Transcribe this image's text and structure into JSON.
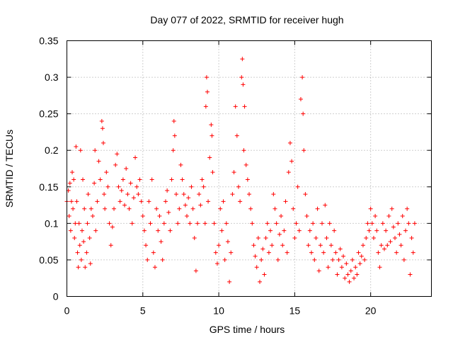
{
  "chart_data": {
    "type": "scatter",
    "title": "Day 077 of 2022, SRMTID for receiver hugh",
    "xlabel": "GPS time / hours",
    "ylabel": "SRMTID / TECUs",
    "xlim": [
      0,
      24
    ],
    "ylim": [
      0,
      0.35
    ],
    "xticks": [
      0,
      5,
      10,
      15,
      20
    ],
    "xtick_labels": [
      "0",
      "5",
      "10",
      "15",
      "20"
    ],
    "yticks": [
      0,
      0.05,
      0.1,
      0.15,
      0.2,
      0.25,
      0.3,
      0.35
    ],
    "ytick_labels": [
      "0",
      "0.05",
      "0.1",
      "0.15",
      "0.2",
      "0.25",
      "0.3",
      "0.35"
    ],
    "grid": true,
    "marker": "+",
    "color": "#ff0000",
    "series": [
      {
        "name": "SRMTID",
        "points": [
          [
            0.0,
            0.13
          ],
          [
            0.1,
            0.145
          ],
          [
            0.15,
            0.11
          ],
          [
            0.2,
            0.155
          ],
          [
            0.25,
            0.09
          ],
          [
            0.3,
            0.13
          ],
          [
            0.35,
            0.17
          ],
          [
            0.4,
            0.12
          ],
          [
            0.45,
            0.16
          ],
          [
            0.5,
            0.08
          ],
          [
            0.55,
            0.1
          ],
          [
            0.6,
            0.205
          ],
          [
            0.65,
            0.13
          ],
          [
            0.7,
            0.06
          ],
          [
            0.75,
            0.04
          ],
          [
            0.8,
            0.1
          ],
          [
            0.85,
            0.07
          ],
          [
            0.9,
            0.2
          ],
          [
            0.95,
            0.05
          ],
          [
            1.0,
            0.09
          ],
          [
            1.05,
            0.16
          ],
          [
            1.1,
            0.075
          ],
          [
            1.15,
            0.12
          ],
          [
            1.2,
            0.04
          ],
          [
            1.3,
            0.06
          ],
          [
            1.35,
            0.1
          ],
          [
            1.4,
            0.14
          ],
          [
            1.5,
            0.08
          ],
          [
            1.55,
            0.045
          ],
          [
            1.6,
            0.12
          ],
          [
            1.7,
            0.11
          ],
          [
            1.8,
            0.155
          ],
          [
            1.85,
            0.2
          ],
          [
            1.9,
            0.09
          ],
          [
            2.0,
            0.13
          ],
          [
            2.1,
            0.185
          ],
          [
            2.2,
            0.16
          ],
          [
            2.3,
            0.24
          ],
          [
            2.35,
            0.23
          ],
          [
            2.4,
            0.21
          ],
          [
            2.45,
            0.14
          ],
          [
            2.5,
            0.12
          ],
          [
            2.6,
            0.17
          ],
          [
            2.7,
            0.15
          ],
          [
            2.8,
            0.1
          ],
          [
            2.9,
            0.07
          ],
          [
            3.0,
            0.095
          ],
          [
            3.1,
            0.12
          ],
          [
            3.2,
            0.18
          ],
          [
            3.3,
            0.195
          ],
          [
            3.4,
            0.15
          ],
          [
            3.5,
            0.13
          ],
          [
            3.6,
            0.145
          ],
          [
            3.7,
            0.16
          ],
          [
            3.8,
            0.125
          ],
          [
            3.9,
            0.175
          ],
          [
            4.0,
            0.14
          ],
          [
            4.1,
            0.12
          ],
          [
            4.2,
            0.155
          ],
          [
            4.3,
            0.1
          ],
          [
            4.4,
            0.135
          ],
          [
            4.5,
            0.19
          ],
          [
            4.6,
            0.15
          ],
          [
            4.7,
            0.14
          ],
          [
            4.8,
            0.16
          ],
          [
            4.9,
            0.13
          ],
          [
            5.0,
            0.11
          ],
          [
            5.1,
            0.09
          ],
          [
            5.2,
            0.07
          ],
          [
            5.3,
            0.05
          ],
          [
            5.4,
            0.13
          ],
          [
            5.5,
            0.1
          ],
          [
            5.6,
            0.16
          ],
          [
            5.7,
            0.06
          ],
          [
            5.8,
            0.04
          ],
          [
            5.9,
            0.12
          ],
          [
            6.0,
            0.09
          ],
          [
            6.1,
            0.11
          ],
          [
            6.2,
            0.075
          ],
          [
            6.3,
            0.05
          ],
          [
            6.4,
            0.1
          ],
          [
            6.5,
            0.13
          ],
          [
            6.6,
            0.145
          ],
          [
            6.7,
            0.115
          ],
          [
            6.8,
            0.09
          ],
          [
            6.9,
            0.16
          ],
          [
            7.0,
            0.2
          ],
          [
            7.05,
            0.24
          ],
          [
            7.1,
            0.22
          ],
          [
            7.2,
            0.14
          ],
          [
            7.3,
            0.1
          ],
          [
            7.4,
            0.12
          ],
          [
            7.5,
            0.18
          ],
          [
            7.6,
            0.16
          ],
          [
            7.7,
            0.14
          ],
          [
            7.8,
            0.125
          ],
          [
            7.9,
            0.11
          ],
          [
            8.0,
            0.135
          ],
          [
            8.1,
            0.1
          ],
          [
            8.2,
            0.15
          ],
          [
            8.3,
            0.12
          ],
          [
            8.4,
            0.08
          ],
          [
            8.5,
            0.035
          ],
          [
            8.6,
            0.1
          ],
          [
            8.7,
            0.14
          ],
          [
            8.8,
            0.125
          ],
          [
            8.9,
            0.16
          ],
          [
            9.0,
            0.15
          ],
          [
            9.1,
            0.1
          ],
          [
            9.15,
            0.26
          ],
          [
            9.2,
            0.3
          ],
          [
            9.25,
            0.28
          ],
          [
            9.3,
            0.13
          ],
          [
            9.4,
            0.19
          ],
          [
            9.5,
            0.235
          ],
          [
            9.55,
            0.22
          ],
          [
            9.6,
            0.17
          ],
          [
            9.7,
            0.1
          ],
          [
            9.8,
            0.06
          ],
          [
            9.9,
            0.045
          ],
          [
            10.0,
            0.07
          ],
          [
            10.1,
            0.12
          ],
          [
            10.2,
            0.09
          ],
          [
            10.3,
            0.13
          ],
          [
            10.4,
            0.05
          ],
          [
            10.5,
            0.1
          ],
          [
            10.6,
            0.075
          ],
          [
            10.7,
            0.02
          ],
          [
            10.8,
            0.06
          ],
          [
            10.9,
            0.14
          ],
          [
            11.0,
            0.17
          ],
          [
            11.1,
            0.26
          ],
          [
            11.2,
            0.22
          ],
          [
            11.3,
            0.15
          ],
          [
            11.4,
            0.13
          ],
          [
            11.5,
            0.3
          ],
          [
            11.55,
            0.325
          ],
          [
            11.6,
            0.29
          ],
          [
            11.65,
            0.2
          ],
          [
            11.7,
            0.26
          ],
          [
            11.8,
            0.18
          ],
          [
            11.9,
            0.16
          ],
          [
            12.0,
            0.14
          ],
          [
            12.1,
            0.12
          ],
          [
            12.2,
            0.1
          ],
          [
            12.3,
            0.07
          ],
          [
            12.4,
            0.055
          ],
          [
            12.5,
            0.04
          ],
          [
            12.6,
            0.08
          ],
          [
            12.7,
            0.02
          ],
          [
            12.8,
            0.05
          ],
          [
            12.9,
            0.065
          ],
          [
            13.0,
            0.03
          ],
          [
            13.1,
            0.08
          ],
          [
            13.2,
            0.1
          ],
          [
            13.3,
            0.06
          ],
          [
            13.4,
            0.09
          ],
          [
            13.5,
            0.07
          ],
          [
            13.6,
            0.14
          ],
          [
            13.7,
            0.12
          ],
          [
            13.8,
            0.1
          ],
          [
            13.9,
            0.05
          ],
          [
            14.0,
            0.085
          ],
          [
            14.1,
            0.11
          ],
          [
            14.2,
            0.07
          ],
          [
            14.3,
            0.09
          ],
          [
            14.4,
            0.13
          ],
          [
            14.5,
            0.06
          ],
          [
            14.6,
            0.17
          ],
          [
            14.7,
            0.21
          ],
          [
            14.8,
            0.185
          ],
          [
            14.9,
            0.12
          ],
          [
            15.0,
            0.08
          ],
          [
            15.1,
            0.1
          ],
          [
            15.2,
            0.15
          ],
          [
            15.3,
            0.09
          ],
          [
            15.4,
            0.27
          ],
          [
            15.5,
            0.3
          ],
          [
            15.55,
            0.25
          ],
          [
            15.6,
            0.2
          ],
          [
            15.7,
            0.14
          ],
          [
            15.8,
            0.11
          ],
          [
            15.9,
            0.07
          ],
          [
            16.0,
            0.09
          ],
          [
            16.1,
            0.06
          ],
          [
            16.2,
            0.1
          ],
          [
            16.3,
            0.05
          ],
          [
            16.4,
            0.08
          ],
          [
            16.5,
            0.12
          ],
          [
            16.6,
            0.035
          ],
          [
            16.7,
            0.07
          ],
          [
            16.8,
            0.1
          ],
          [
            16.9,
            0.06
          ],
          [
            17.0,
            0.125
          ],
          [
            17.1,
            0.08
          ],
          [
            17.2,
            0.04
          ],
          [
            17.3,
            0.1
          ],
          [
            17.4,
            0.07
          ],
          [
            17.5,
            0.05
          ],
          [
            17.6,
            0.09
          ],
          [
            17.7,
            0.06
          ],
          [
            17.8,
            0.03
          ],
          [
            17.9,
            0.05
          ],
          [
            18.0,
            0.065
          ],
          [
            18.1,
            0.04
          ],
          [
            18.2,
            0.055
          ],
          [
            18.3,
            0.025
          ],
          [
            18.4,
            0.045
          ],
          [
            18.5,
            0.03
          ],
          [
            18.6,
            0.02
          ],
          [
            18.7,
            0.035
          ],
          [
            18.8,
            0.05
          ],
          [
            18.9,
            0.025
          ],
          [
            19.0,
            0.04
          ],
          [
            19.1,
            0.03
          ],
          [
            19.2,
            0.06
          ],
          [
            19.3,
            0.045
          ],
          [
            19.4,
            0.055
          ],
          [
            19.5,
            0.07
          ],
          [
            19.6,
            0.05
          ],
          [
            19.7,
            0.08
          ],
          [
            19.8,
            0.1
          ],
          [
            19.9,
            0.09
          ],
          [
            20.0,
            0.12
          ],
          [
            20.1,
            0.1
          ],
          [
            20.2,
            0.08
          ],
          [
            20.3,
            0.11
          ],
          [
            20.4,
            0.09
          ],
          [
            20.5,
            0.06
          ],
          [
            20.6,
            0.04
          ],
          [
            20.7,
            0.07
          ],
          [
            20.8,
            0.1
          ],
          [
            20.9,
            0.065
          ],
          [
            21.0,
            0.09
          ],
          [
            21.1,
            0.07
          ],
          [
            21.2,
            0.11
          ],
          [
            21.3,
            0.075
          ],
          [
            21.4,
            0.12
          ],
          [
            21.5,
            0.095
          ],
          [
            21.6,
            0.08
          ],
          [
            21.7,
            0.06
          ],
          [
            21.8,
            0.1
          ],
          [
            21.9,
            0.085
          ],
          [
            22.0,
            0.07
          ],
          [
            22.1,
            0.11
          ],
          [
            22.2,
            0.05
          ],
          [
            22.3,
            0.09
          ],
          [
            22.4,
            0.12
          ],
          [
            22.5,
            0.1
          ],
          [
            22.6,
            0.03
          ],
          [
            22.7,
            0.08
          ],
          [
            22.8,
            0.06
          ],
          [
            22.9,
            0.1
          ]
        ]
      }
    ]
  }
}
